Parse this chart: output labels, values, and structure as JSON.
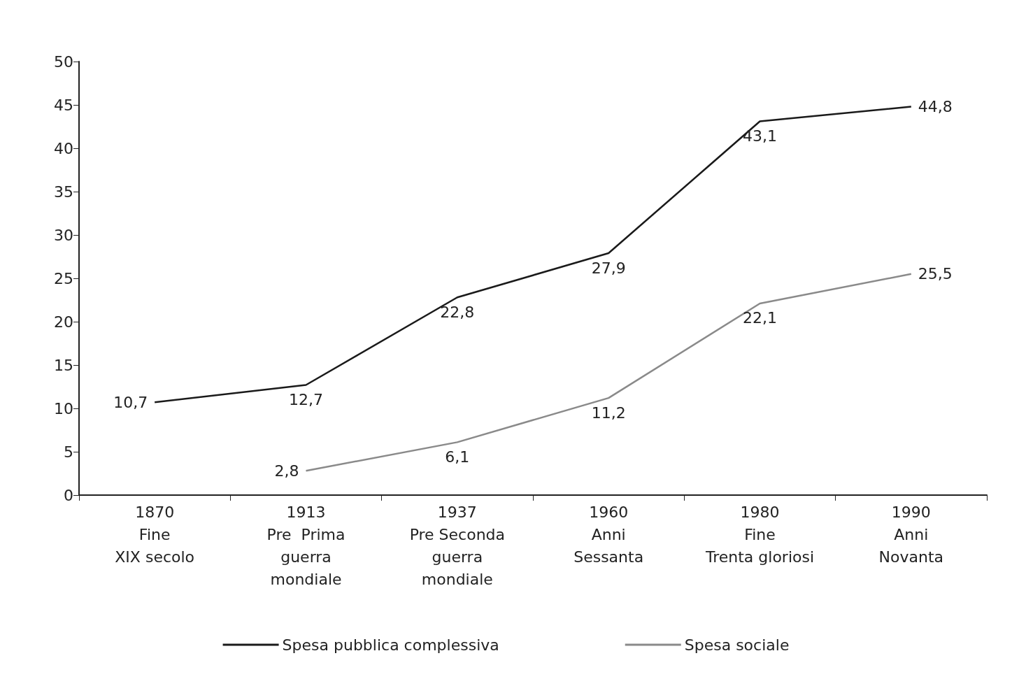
{
  "chart_data": {
    "type": "line",
    "categories": [
      "1870\nFine\nXIX secolo",
      "1913\nPre  Prima\nguerra\nmondiale",
      "1937\nPre Seconda\nguerra\nmondiale",
      "1960\nAnni\nSessanta",
      "1980\nFine\nTrenta gloriosi",
      "1990\nAnni\nNovanta"
    ],
    "series": [
      {
        "name": "Spesa pubblica complessiva",
        "color": "#1a1a1a",
        "values": [
          10.7,
          12.7,
          22.8,
          27.9,
          43.1,
          44.8
        ],
        "value_labels": [
          "10,7",
          "12,7",
          "22,8",
          "27,9",
          "43,1",
          "44,8"
        ]
      },
      {
        "name": "Spesa sociale",
        "color": "#8a8a8a",
        "values": [
          null,
          2.8,
          6.1,
          11.2,
          22.1,
          25.5
        ],
        "value_labels": [
          null,
          "2,8",
          "6,1",
          "11,2",
          "22,1",
          "25,5"
        ]
      }
    ],
    "ylim": [
      0,
      50
    ],
    "yticks": [
      0,
      5,
      10,
      15,
      20,
      25,
      30,
      35,
      40,
      45,
      50
    ],
    "grid": false,
    "legend": "bottom",
    "marker": "none"
  }
}
